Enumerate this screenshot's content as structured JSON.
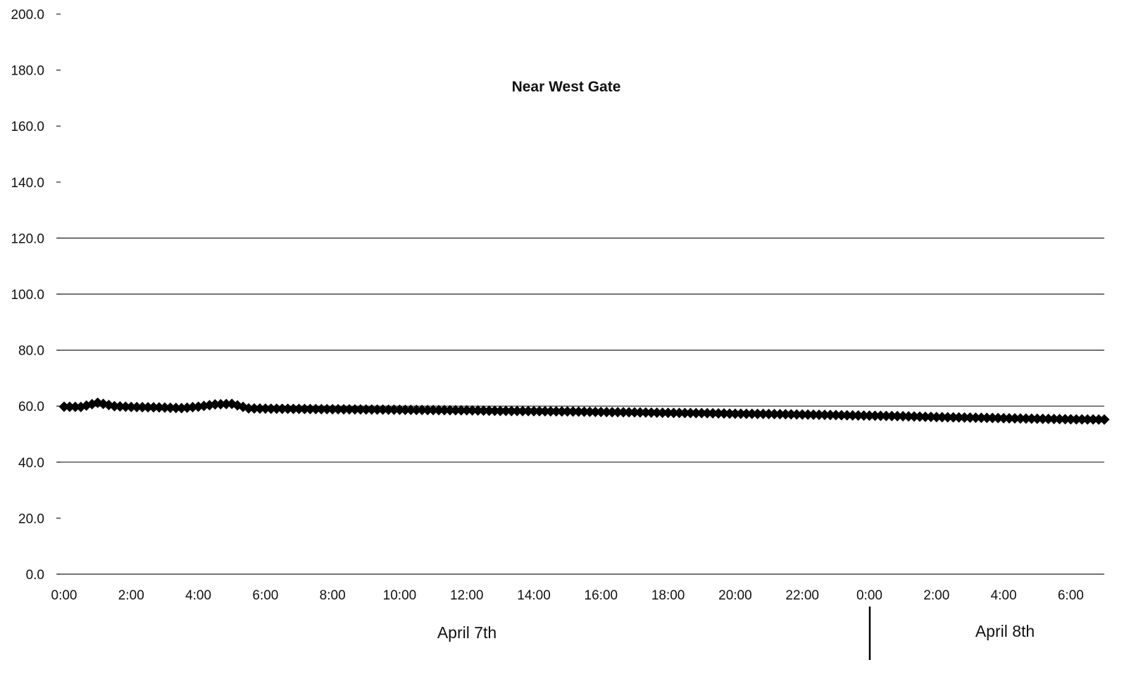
{
  "chart_data": {
    "type": "line",
    "title": "Near West Gate",
    "xlabel": "",
    "ylabel": "",
    "ylim": [
      0,
      200
    ],
    "y_ticks": [
      "200.0",
      "180.0",
      "160.0",
      "140.0",
      "120.0",
      "100.0",
      "80.0",
      "60.0",
      "40.0",
      "20.0",
      "0.0"
    ],
    "x_ticks": [
      "0:00",
      "2:00",
      "4:00",
      "6:00",
      "8:00",
      "10:00",
      "12:00",
      "14:00",
      "16:00",
      "18:00",
      "20:00",
      "22:00",
      "0:00",
      "2:00",
      "4:00",
      "6:00"
    ],
    "x_range_hours": [
      0,
      31
    ],
    "gridlines_at": [
      40,
      60,
      80,
      100,
      120
    ],
    "date_labels": [
      "April 7th",
      "April 8th"
    ],
    "marker": "diamond",
    "series": [
      {
        "x_hours": [
          0.0,
          0.5,
          1.0,
          1.5,
          2.0,
          2.5,
          3.0,
          3.5,
          4.0,
          4.5,
          5.0,
          5.5,
          6.0,
          7.0,
          8.0,
          9.0,
          10.0,
          11.0,
          12.0,
          13.0,
          14.0,
          15.0,
          16.0,
          17.0,
          18.0,
          19.0,
          20.0,
          21.0,
          22.0,
          23.0,
          24.0,
          25.0,
          26.0,
          27.0,
          28.0,
          29.0,
          30.0,
          31.0
        ],
        "values": [
          59.8,
          59.7,
          61.2,
          60.0,
          59.7,
          59.6,
          59.5,
          59.3,
          59.8,
          60.6,
          60.8,
          59.2,
          59.1,
          59.0,
          58.9,
          58.8,
          58.7,
          58.6,
          58.5,
          58.3,
          58.2,
          58.1,
          57.9,
          57.8,
          57.6,
          57.5,
          57.3,
          57.2,
          57.0,
          56.8,
          56.6,
          56.4,
          56.1,
          55.9,
          55.7,
          55.5,
          55.3,
          55.2
        ]
      }
    ]
  }
}
